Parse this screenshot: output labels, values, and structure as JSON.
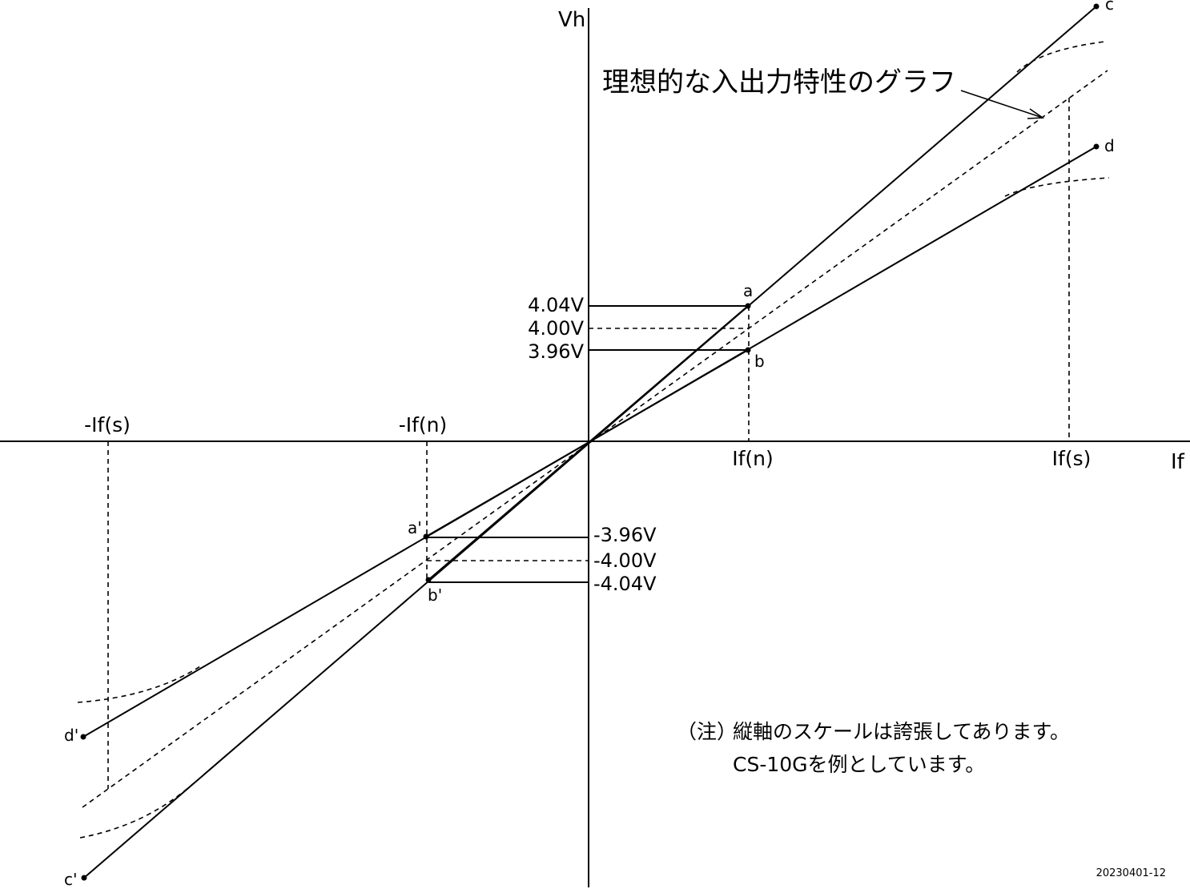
{
  "axes": {
    "y_label": "Vh",
    "x_label": "If"
  },
  "x_ticks": [
    "-If(s)",
    "-If(n)",
    "If(n)",
    "If(s)"
  ],
  "y_levels": [
    "4.04V",
    "4.00V",
    "3.96V",
    "-3.96V",
    "-4.00V",
    "-4.04V"
  ],
  "points": [
    "a",
    "b",
    "c",
    "d",
    "a'",
    "b'",
    "c'",
    "d'"
  ],
  "annotation": "理想的な入出力特性のグラフ",
  "note": {
    "prefix": "（注）",
    "lines": [
      "縦軸のスケールは誇張してあります。",
      "CS-10Gを例としています。"
    ]
  },
  "footer": "20230401-12"
}
